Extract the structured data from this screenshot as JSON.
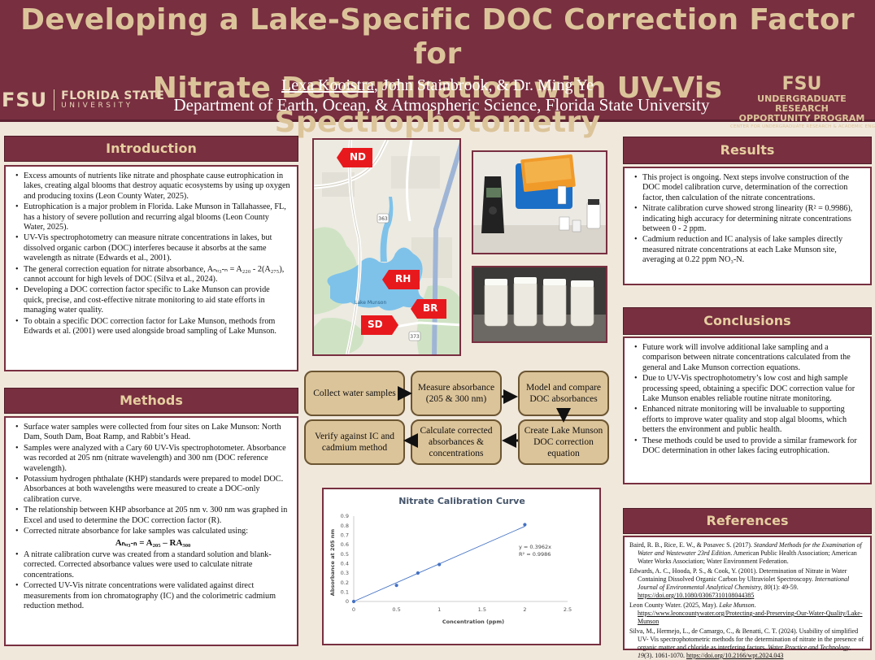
{
  "header": {
    "title_line1": "Developing a Lake-Specific DOC Correction Factor for",
    "title_line2": "Nitrate Determination with UV-Vis Spectrophotometry",
    "presenter": "Lexa Kooistra",
    "coauthors": ", John Stainbrook, & Dr. Ming Ye",
    "department": "Department of Earth, Ocean, & Atmospheric Science, Florida State University",
    "fsu_monogram": "FSU",
    "fsu_name": "FLORIDA STATE",
    "fsu_university": "UNIVERSITY",
    "urop_monogram": "FSU",
    "urop_line1": "UNDERGRADUATE RESEARCH",
    "urop_line2": "OPPORTUNITY PROGRAM",
    "urop_line3": "CENTER FOR UNDERGRADUATE RESEARCH & ACADEMIC ENGAGEMENT"
  },
  "introduction": {
    "heading": "Introduction",
    "items": [
      "Excess amounts of nutrients like nitrate and phosphate cause eutrophication in lakes, creating algal blooms that destroy aquatic ecosystems by using up oxygen and producing toxins (Leon County Water, 2025).",
      "Eutrophication is a major problem in Florida. Lake Munson in Tallahassee, FL, has a history of severe pollution and recurring algal blooms (Leon County Water, 2025).",
      "UV-Vis spectrophotometry can measure nitrate concentrations in lakes, but dissolved organic carbon (DOC) interferes because it absorbs at the same wavelength as nitrate (Edwards et al., 2001).",
      "The general correction equation for nitrate absorbance, Aₙₒ₃-ₙ = A₂₂₀ - 2(A₂₇₅), cannot account for high levels of DOC (Silva et al., 2024).",
      "Developing a DOC correction factor specific to Lake Munson can provide quick, precise, and cost-effective nitrate monitoring to aid state efforts in managing water quality.",
      "To obtain a specific DOC correction factor for Lake Munson, methods from Edwards et al. (2001) were used alongside broad sampling of Lake Munson."
    ]
  },
  "methods": {
    "heading": "Methods",
    "items": [
      "Surface water samples were collected from four sites on Lake Munson: North Dam, South Dam, Boat Ramp, and Rabbit’s Head.",
      "Samples were analyzed with a Cary 60 UV-Vis spectrophotometer. Absorbance was recorded at 205 nm (nitrate wavelength) and 300 nm (DOC reference wavelength).",
      "Potassium hydrogen phthalate (KHP) standards were prepared to model DOC. Absorbances at both wavelengths were measured to create a DOC-only calibration curve.",
      "The relationship between KHP absorbance at 205 nm v. 300 nm was graphed in Excel and used to determine the DOC correction factor (R).",
      "Corrected nitrate absorbance for lake samples was calculated using:"
    ],
    "formula": "Aₙₒ₃-ₙ = A₂₀₅ – RA₃₀₀",
    "items2": [
      "A nitrate calibration curve was created from a standard solution and blank-corrected. Corrected absorbance values were used to calculate nitrate concentrations.",
      "Corrected UV-Vis nitrate concentrations were validated against direct measurements from ion chromatography (IC) and the colorimetric cadmium reduction method."
    ]
  },
  "map": {
    "labels": [
      "ND",
      "RH",
      "BR",
      "SD"
    ],
    "lake_name": "Lake Munson",
    "road_labels": [
      "363",
      "373"
    ]
  },
  "flowchart": {
    "steps": [
      "Collect water samples",
      "Measure absorbance (205 & 300 nm)",
      "Model and compare DOC absorbances",
      "Create Lake Munson DOC correction equation",
      "Calculate corrected absorbances & concentrations",
      "Verify against IC and cadmium method"
    ]
  },
  "chart_data": {
    "type": "scatter",
    "title": "Nitrate Calibration Curve",
    "xlabel": "Concentration (ppm)",
    "ylabel": "Absorbance at 205 nm",
    "xlim": [
      0,
      2.5
    ],
    "ylim": [
      0,
      0.9
    ],
    "x_ticks": [
      0,
      0.5,
      1,
      1.5,
      2,
      2.5
    ],
    "y_ticks": [
      0,
      0.1,
      0.2,
      0.3,
      0.4,
      0.5,
      0.6,
      0.7,
      0.8,
      0.9
    ],
    "x": [
      0,
      0.5,
      0.75,
      1,
      2
    ],
    "y": [
      0,
      0.17,
      0.3,
      0.39,
      0.81
    ],
    "trendline": {
      "slope": 0.3962,
      "intercept": 0
    },
    "equation": "y = 0.3962x",
    "r2": "R² = 0.9986",
    "grid": false,
    "colors": {
      "series": "#4472c4",
      "title": "#44546a"
    }
  },
  "results": {
    "heading": "Results",
    "items": [
      "This project is ongoing. Next steps involve construction of the DOC model calibration curve, determination of the correction factor, then calculation of the nitrate concentrations.",
      "Nitrate calibration curve showed strong linearity (R² = 0.9986), indicating high accuracy for determining nitrate concentrations between 0 - 2 ppm.",
      "Cadmium reduction and IC analysis of lake samples directly measured nitrate concentrations at each Lake Munson site, averaging at 0.22 ppm NO₃-N."
    ]
  },
  "conclusions": {
    "heading": "Conclusions",
    "items": [
      "Future work will involve additional lake sampling and a comparison between nitrate concentrations calculated from the general and Lake Munson correction equations.",
      "Due to UV-Vis spectrophotometry’s low cost and high sample processing speed, obtaining a specific DOC correction value for Lake Munson enables reliable routine nitrate monitoring.",
      "Enhanced nitrate monitoring will be invaluable to supporting efforts to improve water quality and stop algal blooms, which betters the environment and public health.",
      "These methods could be used to provide a similar framework for DOC determination in other lakes facing eutrophication."
    ]
  },
  "references": {
    "heading": "References",
    "items": [
      {
        "pre": "Baird, R. B., Rice, E. W., & Posavec S. (2017). ",
        "ital": "Standard Methods for the Examination of Water and Wastewater 23rd Edition",
        "post": ". American Public Health Association; American Water Works Association; Water Environment Federation.",
        "link": ""
      },
      {
        "pre": "Edwards, A. C., Hooda, P. S., & Cook, Y. (2001). Determination of Nitrate in Water Containing Dissolved Organic Carbon by Ultraviolet Spectroscopy. ",
        "ital": "International Journal of Environmental Analytical Chemistry, 80",
        "post": "(1): 49-59. ",
        "link": "https://doi.org/10.1080/03067310108044385"
      },
      {
        "pre": "Leon County Water. (2025, May). ",
        "ital": "Lake Munson",
        "post": ". ",
        "link": "https://www.leoncountywater.org/Protecting-and-Preserving-Our-Water-Quality/Lake-Munson"
      },
      {
        "pre": "Silva, M., Hermejo, L., de Camargo, C., & Benatti, C. T. (2024). Usability of simplified UV- Vis spectrophotometric methods for the determination of nitrate in the presence of organic matter and chloride as interfering factors. ",
        "ital": "Water Practice and Technology, 19",
        "post": "(3). 1061-1070. ",
        "link": "https://doi.org/10.2166/wpt.2024.043"
      }
    ]
  }
}
